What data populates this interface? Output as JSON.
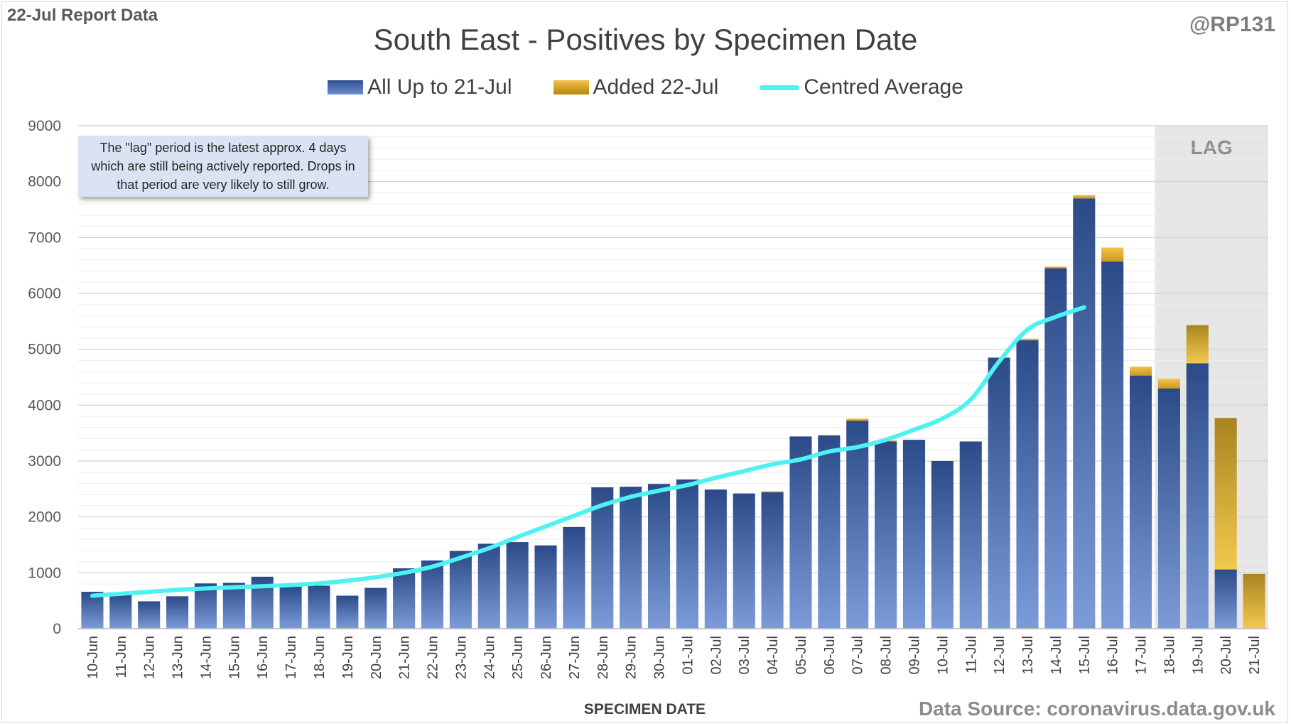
{
  "header": {
    "report_label": "22-Jul Report Data",
    "handle": "@RP131",
    "source": "Data Source: coronavirus.data.gov.uk"
  },
  "note": {
    "text": "The \"lag\" period is the latest approx. 4 days which are still being actively reported. Drops in that period are very likely to still grow."
  },
  "colors": {
    "bar_top": "#2f4f8f",
    "bar_bottom": "#7c9bd9",
    "added_top": "#f2c14e",
    "added_bottom": "#b8860b",
    "line": "#4df2f2",
    "lag_shade": "#e6e6e6",
    "grid": "#d9d9d9"
  },
  "chart_data": {
    "type": "bar",
    "title": "South East - Positives by Specimen Date",
    "xlabel": "SPECIMEN DATE",
    "ylabel": "",
    "ylim": [
      0,
      9000
    ],
    "yticks": [
      0,
      1000,
      2000,
      3000,
      4000,
      5000,
      6000,
      7000,
      8000,
      9000
    ],
    "grid": true,
    "legend_position": "top",
    "lag_label": "LAG",
    "lag_categories": [
      "18-Jul",
      "19-Jul",
      "20-Jul",
      "21-Jul"
    ],
    "categories": [
      "10-Jun",
      "11-Jun",
      "12-Jun",
      "13-Jun",
      "14-Jun",
      "15-Jun",
      "16-Jun",
      "17-Jun",
      "18-Jun",
      "19-Jun",
      "20-Jun",
      "21-Jun",
      "22-Jun",
      "23-Jun",
      "24-Jun",
      "25-Jun",
      "26-Jun",
      "27-Jun",
      "28-Jun",
      "29-Jun",
      "30-Jun",
      "01-Jul",
      "02-Jul",
      "03-Jul",
      "04-Jul",
      "05-Jul",
      "06-Jul",
      "07-Jul",
      "08-Jul",
      "09-Jul",
      "10-Jul",
      "11-Jul",
      "12-Jul",
      "13-Jul",
      "14-Jul",
      "15-Jul",
      "16-Jul",
      "17-Jul",
      "18-Jul",
      "19-Jul",
      "20-Jul",
      "21-Jul"
    ],
    "series": [
      {
        "name": "All Up to 21-Jul",
        "values": [
          660,
          610,
          490,
          580,
          810,
          820,
          930,
          760,
          770,
          590,
          730,
          1080,
          1220,
          1390,
          1520,
          1550,
          1490,
          1820,
          2530,
          2540,
          2590,
          2670,
          2490,
          2420,
          2440,
          3440,
          3460,
          3720,
          3350,
          3380,
          3000,
          3350,
          4850,
          5160,
          6450,
          7700,
          6570,
          4530,
          4300,
          4750,
          1060,
          0
        ]
      },
      {
        "name": "Added 22-Jul",
        "values": [
          0,
          0,
          0,
          0,
          0,
          0,
          0,
          0,
          0,
          0,
          0,
          0,
          0,
          0,
          0,
          0,
          0,
          0,
          0,
          0,
          0,
          0,
          0,
          0,
          20,
          0,
          0,
          40,
          20,
          0,
          0,
          0,
          0,
          30,
          30,
          60,
          250,
          160,
          170,
          680,
          2710,
          980
        ]
      },
      {
        "name": "Centred Average",
        "values": [
          590,
          625,
          660,
          695,
          720,
          740,
          760,
          780,
          810,
          860,
          920,
          1000,
          1110,
          1270,
          1440,
          1640,
          1830,
          2020,
          2210,
          2360,
          2470,
          2570,
          2700,
          2820,
          2940,
          3030,
          3170,
          3250,
          3380,
          3560,
          3760,
          4100,
          4780,
          5350,
          5580,
          5750,
          null,
          null,
          null,
          null,
          null,
          null
        ]
      }
    ]
  }
}
